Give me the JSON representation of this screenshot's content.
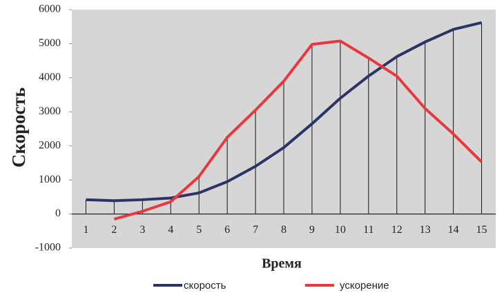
{
  "chart_data": {
    "type": "line",
    "x_label": "Время",
    "y_label": "Скорость",
    "categories": [
      "1",
      "2",
      "3",
      "4",
      "5",
      "6",
      "7",
      "8",
      "9",
      "10",
      "11",
      "12",
      "13",
      "14",
      "15"
    ],
    "series": [
      {
        "name": "скорость",
        "color": "#2b3467",
        "values": [
          420,
          390,
          420,
          470,
          620,
          950,
          1400,
          1950,
          2650,
          3400,
          4050,
          4620,
          5050,
          5420,
          5620
        ]
      },
      {
        "name": "ускорение",
        "color": "#e8383d",
        "values": [
          null,
          -150,
          80,
          360,
          1100,
          2250,
          3050,
          3900,
          4980,
          5080,
          4580,
          4050,
          3100,
          2350,
          1530
        ]
      }
    ],
    "ylim": [
      -1000,
      6000
    ],
    "yticks": [
      -1000,
      0,
      1000,
      2000,
      3000,
      4000,
      5000,
      6000
    ],
    "drop_lines": true,
    "plot_background": "#d6d6d6",
    "legend": "bottom"
  }
}
